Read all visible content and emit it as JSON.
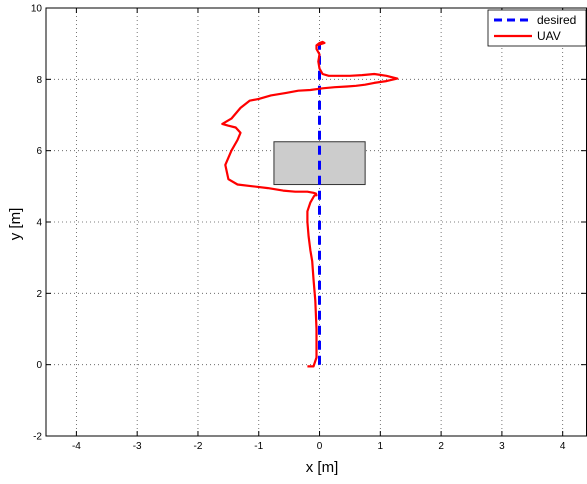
{
  "chart_data": {
    "type": "line",
    "title": "",
    "xlabel": "x [m]",
    "ylabel": "y [m]",
    "xlim": [
      -4.5,
      4.4
    ],
    "ylim": [
      -2,
      10
    ],
    "xticks": [
      -4,
      -3,
      -2,
      -1,
      0,
      1,
      2,
      3,
      4
    ],
    "yticks": [
      -2,
      0,
      2,
      4,
      6,
      8,
      10
    ],
    "grid": true,
    "legend_position": "top-right",
    "series": [
      {
        "name": "desired",
        "color": "#0000ff",
        "style": "dashed",
        "x": [
          0,
          0
        ],
        "y": [
          0,
          9.0
        ]
      },
      {
        "name": "UAV",
        "color": "#ff0000",
        "style": "solid",
        "x": [
          -0.2,
          -0.1,
          -0.05,
          -0.05,
          -0.07,
          -0.1,
          -0.12,
          -0.15,
          -0.18,
          -0.2,
          -0.2,
          -0.15,
          -0.1,
          -0.08,
          -0.05,
          -0.06,
          -0.1,
          -0.2,
          -0.4,
          -0.6,
          -0.85,
          -1.1,
          -1.35,
          -1.5,
          -1.55,
          -1.45,
          -1.35,
          -1.3,
          -1.38,
          -1.5,
          -1.6,
          -1.45,
          -1.3,
          -1.15,
          -1.0,
          -0.8,
          -0.55,
          -0.35,
          -0.15,
          0.05,
          0.25,
          0.45,
          0.6,
          0.75,
          0.9,
          1.1,
          1.28,
          1.1,
          0.9,
          0.7,
          0.5,
          0.3,
          0.15,
          0.05,
          0.0,
          -0.02,
          0.0,
          -0.05,
          -0.05,
          0.0,
          0.05,
          0.08,
          -0.05
        ],
        "y": [
          -0.05,
          -0.05,
          0.2,
          1.0,
          1.8,
          2.4,
          2.9,
          3.2,
          3.6,
          4.0,
          4.3,
          4.55,
          4.7,
          4.75,
          4.75,
          4.8,
          4.82,
          4.85,
          4.85,
          4.88,
          4.95,
          5.0,
          5.05,
          5.2,
          5.6,
          6.0,
          6.3,
          6.5,
          6.65,
          6.7,
          6.75,
          6.9,
          7.2,
          7.4,
          7.45,
          7.55,
          7.62,
          7.68,
          7.7,
          7.75,
          7.78,
          7.8,
          7.82,
          7.85,
          7.9,
          7.95,
          8.02,
          8.1,
          8.15,
          8.12,
          8.1,
          8.1,
          8.1,
          8.15,
          8.3,
          8.5,
          8.7,
          8.85,
          8.95,
          9.02,
          9.05,
          9.02,
          8.95
        ]
      }
    ],
    "obstacle": {
      "x_range": [
        -0.75,
        0.75
      ],
      "y_range": [
        5.05,
        6.25
      ],
      "fill": "#cccccc",
      "stroke": "#333333"
    }
  }
}
